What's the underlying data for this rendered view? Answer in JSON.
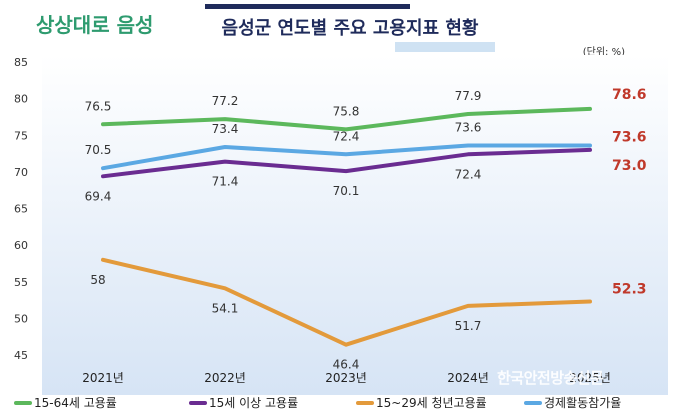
{
  "header": {
    "logo_text": "상상대로 음성",
    "title": "음성군 연도별 주요 고용지표 현황",
    "unit": "(단위: %)"
  },
  "watermark": "한국안전방송신문",
  "colors": {
    "employment_15_64": "#5cb85c",
    "employment_15_plus": "#6a2c91",
    "youth_employment": "#e39a3b",
    "participation": "#5ba8e3",
    "highlight_label": "#c0392b",
    "background_gradient_top": "#ffffff",
    "background_gradient_bottom": "#d6e4f5"
  },
  "chart_data": {
    "type": "line",
    "categories": [
      "2021년",
      "2022년",
      "2023년",
      "2024년",
      "2025년"
    ],
    "ylim": [
      45,
      85
    ],
    "yticks": [
      45,
      50,
      55,
      60,
      65,
      70,
      75,
      80,
      85
    ],
    "grid": false,
    "legend_position": "bottom",
    "series": [
      {
        "name": "15-64세 고용률",
        "color": "#5cb85c",
        "values": [
          76.5,
          77.2,
          75.8,
          77.9,
          78.6
        ]
      },
      {
        "name": "15세 이상 고용률",
        "color": "#6a2c91",
        "values": [
          69.4,
          71.4,
          70.1,
          72.4,
          73.0
        ]
      },
      {
        "name": "15~29세 청년고용률",
        "color": "#e39a3b",
        "values": [
          58.0,
          54.1,
          46.4,
          51.7,
          52.3
        ]
      },
      {
        "name": "경제활동참가율",
        "color": "#5ba8e3",
        "values": [
          70.5,
          73.4,
          72.4,
          73.6,
          73.6
        ]
      }
    ],
    "data_labels": [
      {
        "series": 0,
        "labels": [
          "76.5",
          "77.2",
          "75.8",
          "77.9",
          "78.6"
        ],
        "placement": "above",
        "highlight_last": true
      },
      {
        "series": 1,
        "labels": [
          "69.4",
          "71.4",
          "70.1",
          "72.4",
          "73.0"
        ],
        "placement": "below",
        "highlight_last": true
      },
      {
        "series": 2,
        "labels": [
          "58",
          "54.1",
          "46.4",
          "51.7",
          "52.3"
        ],
        "placement": "below",
        "highlight_last": true
      },
      {
        "series": 3,
        "labels": [
          "70.5",
          "73.4",
          "72.4",
          "73.6",
          "73.6"
        ],
        "placement": "above",
        "highlight_last": true
      }
    ]
  }
}
